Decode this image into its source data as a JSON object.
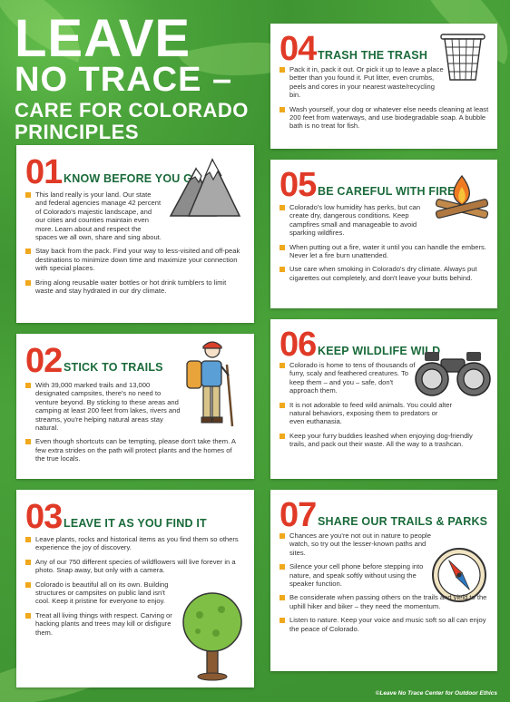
{
  "header": {
    "line1": "LEAVE",
    "line2": "NO TRACE –",
    "line3": "CARE FOR COLORADO",
    "line4": "PRINCIPLES"
  },
  "principles": [
    {
      "number": "01",
      "title": "KNOW BEFORE YOU GO",
      "icon": "mountain-icon",
      "items": [
        "This land really is your land. Our state and federal agencies manage 42 percent of Colorado's majestic landscape, and our cities and counties maintain even more. Learn about and respect the spaces we all own, share and sing about.",
        "Stay back from the pack. Find your way to less-visited and off-peak destinations to minimize down time and maximize your connection with special places.",
        "Bring along reusable water bottles or hot drink tumblers to limit waste and stay hydrated in our dry climate."
      ]
    },
    {
      "number": "02",
      "title": "STICK TO TRAILS",
      "icon": "hiker-icon",
      "items": [
        "With 39,000 marked trails and 13,000 designated campsites, there's no need to venture beyond. By sticking to these areas and camping at least 200 feet from lakes, rivers and streams, you're helping natural areas stay natural.",
        "Even though shortcuts can be tempting, please don't take them. A few extra strides on the path will protect plants and the homes of the true locals."
      ]
    },
    {
      "number": "03",
      "title": "LEAVE IT AS YOU FIND IT",
      "icon": "tree-icon",
      "items": [
        "Leave plants, rocks and historical items as you find them so others experience the joy of discovery.",
        "Any of our 750 different species of wildflowers will live forever in a photo. Snap away, but only with a camera.",
        "Colorado is beautiful all on its own. Building structures or campsites on public land isn't cool. Keep it pristine for everyone to enjoy.",
        "Treat all living things with respect. Carving or hacking plants and trees may kill or disfigure them."
      ]
    },
    {
      "number": "04",
      "title": "TRASH THE TRASH",
      "icon": "trash-can-icon",
      "items": [
        "Pack it in, pack it out. Or pick it up to leave a place better than you found it. Put litter, even crumbs, peels and cores in your nearest waste/recycling bin.",
        "Wash yourself, your dog or whatever else needs cleaning at least 200 feet from waterways, and use biodegradable soap. A bubble bath is no treat for fish."
      ]
    },
    {
      "number": "05",
      "title": "BE CAREFUL WITH FIRE",
      "icon": "campfire-icon",
      "items": [
        "Colorado's low humidity has perks, but can create dry, dangerous conditions. Keep campfires small and manageable to avoid sparking wildfires.",
        "When putting out a fire, water it until you can handle the embers. Never let a fire burn unattended.",
        "Use care when smoking in Colorado's dry climate. Always put cigarettes out completely, and don't leave your butts behind."
      ]
    },
    {
      "number": "06",
      "title": "KEEP WILDLIFE WILD",
      "icon": "binoculars-icon",
      "items": [
        "Colorado is home to tens of thousands of furry, scaly and feathered creatures. To keep them – and you – safe, don't approach them.",
        "It is not adorable to feed wild animals. You could alter natural behaviors, exposing them to predators or even euthanasia.",
        "Keep your furry buddies leashed when enjoying dog-friendly trails, and pack out their waste. All the way to a trashcan."
      ]
    },
    {
      "number": "07",
      "title": "SHARE OUR TRAILS & PARKS",
      "icon": "compass-icon",
      "items": [
        "Chances are you're not out in nature to people watch, so try out the lesser-known paths and sites.",
        "Silence your cell phone before stepping into nature, and speak softly without using the speaker function.",
        "Be considerate when passing others on the trails and yield to the uphill hiker and biker – they need the momentum.",
        "Listen to nature. Keep your voice and music soft so all can enjoy the peace of Colorado."
      ]
    }
  ],
  "credit": "©Leave No Trace Center for Outdoor Ethics",
  "colors": {
    "background": "#4aa33a",
    "number": "#e03a27",
    "heading": "#1a6a3a",
    "bullet": "#f0a81c"
  }
}
